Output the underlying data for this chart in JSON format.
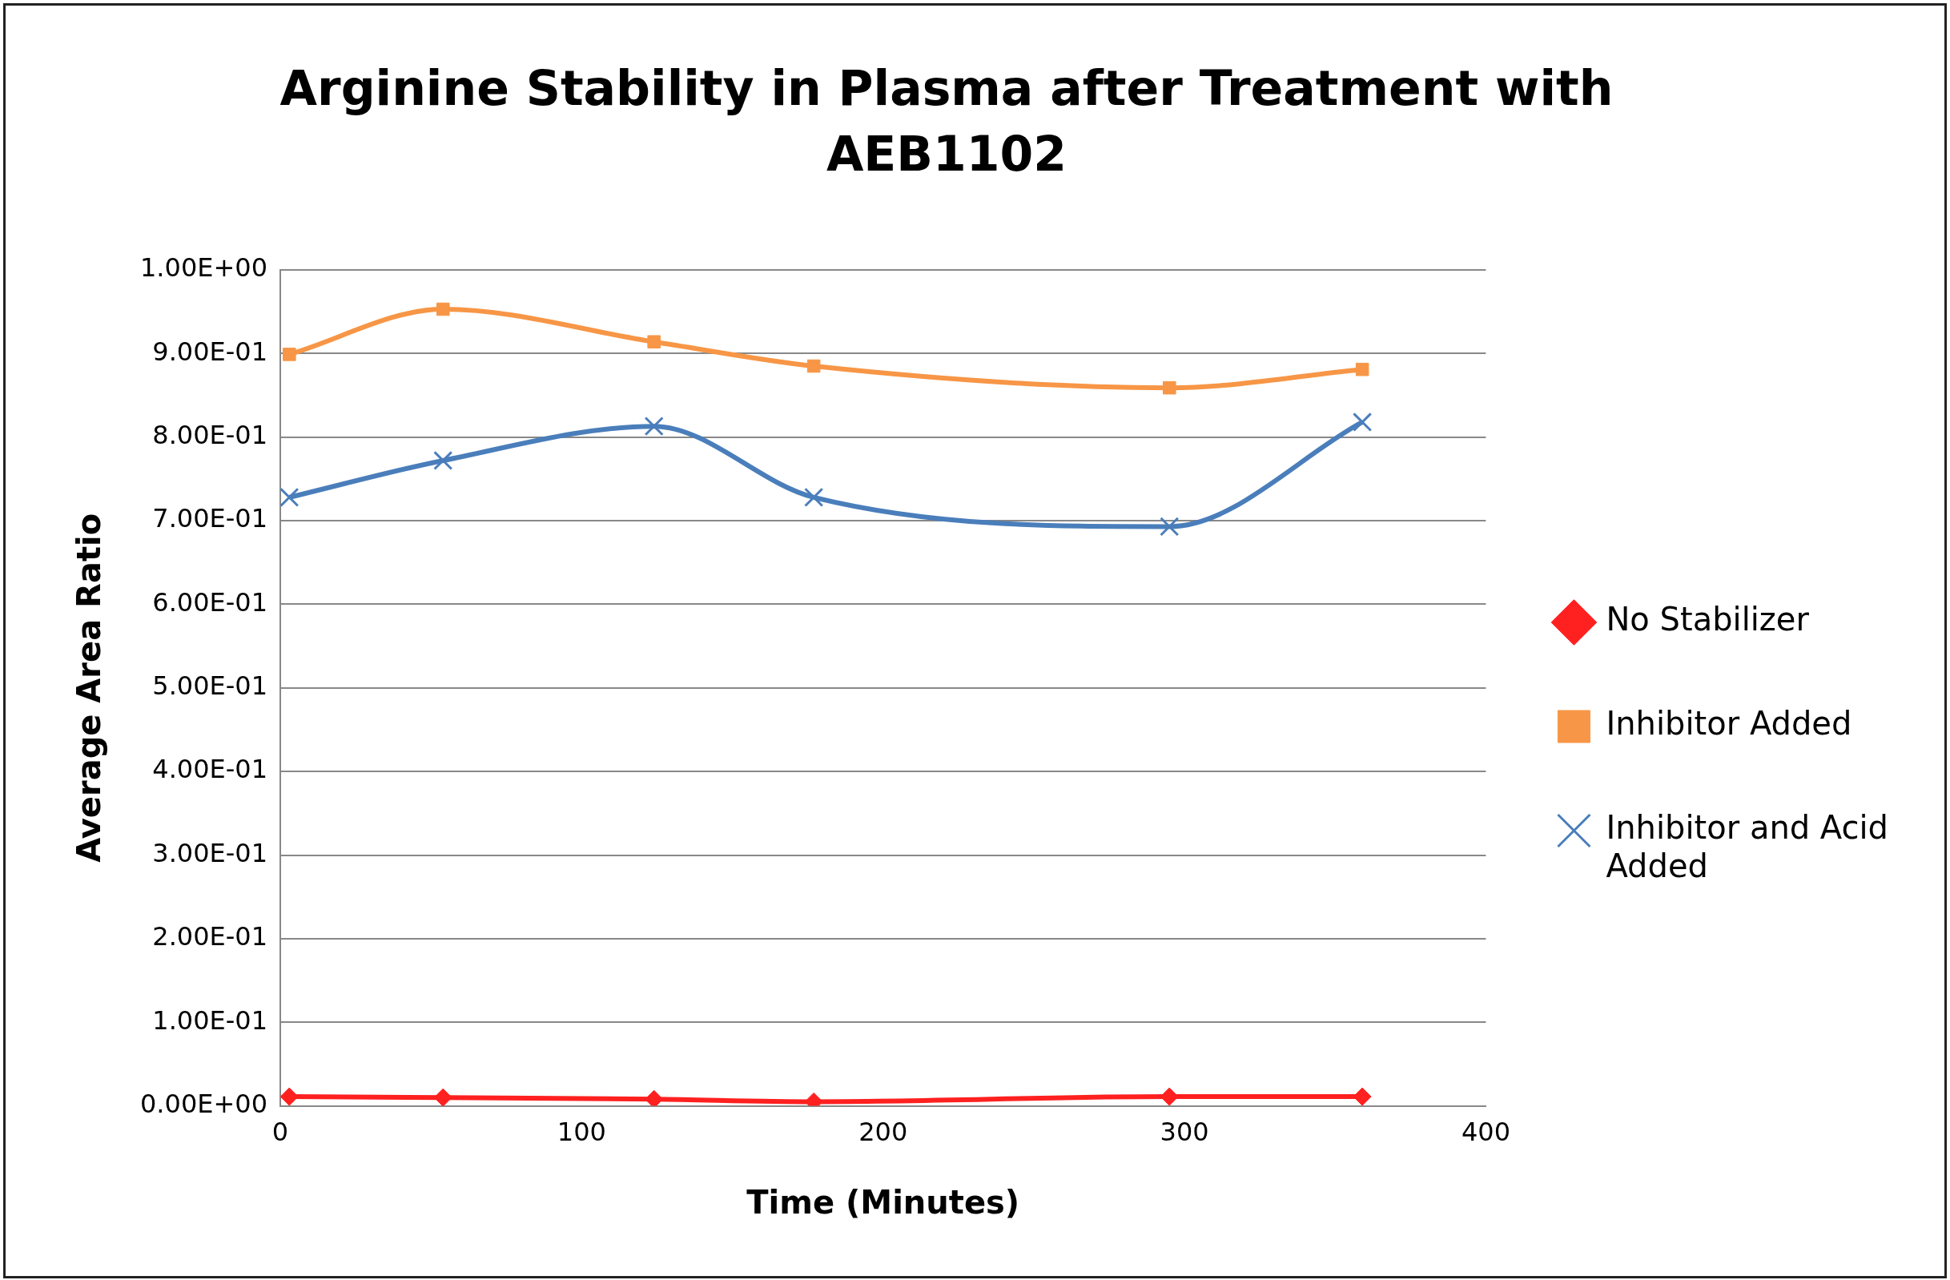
{
  "chart_data": {
    "type": "line",
    "title": "Arginine Stability in Plasma after Treatment with AEB1102",
    "xlabel": "Time (Minutes)",
    "ylabel": "Average Area Ratio",
    "xlim": [
      0,
      400
    ],
    "xticks": [
      0,
      100,
      200,
      300,
      400
    ],
    "ylim": [
      0,
      1
    ],
    "yticks": [
      {
        "value": 0,
        "label": "0.00E+00"
      },
      {
        "value": 0.1,
        "label": "1.00E-01"
      },
      {
        "value": 0.2,
        "label": "2.00E-01"
      },
      {
        "value": 0.3,
        "label": "3.00E-01"
      },
      {
        "value": 0.4,
        "label": "4.00E-01"
      },
      {
        "value": 0.5,
        "label": "5.00E-01"
      },
      {
        "value": 0.6,
        "label": "6.00E-01"
      },
      {
        "value": 0.7,
        "label": "7.00E-01"
      },
      {
        "value": 0.8,
        "label": "8.00E-01"
      },
      {
        "value": 0.9,
        "label": "9.00E-01"
      },
      {
        "value": 1,
        "label": "1.00E+00"
      }
    ],
    "x": [
      3,
      54,
      124,
      177,
      295,
      359
    ],
    "series": [
      {
        "name": "No Stabilizer",
        "color": "#ff2020",
        "marker": "diamond",
        "values": [
          0.011,
          0.01,
          0.008,
          0.005,
          0.011,
          0.011
        ]
      },
      {
        "name": "Inhibitor Added",
        "color": "#f79646",
        "marker": "square",
        "values": [
          0.899,
          0.953,
          0.914,
          0.885,
          0.859,
          0.881
        ]
      },
      {
        "name": "Inhibitor and Acid Added",
        "color": "#4a7ebb",
        "marker": "cross",
        "values": [
          0.728,
          0.772,
          0.813,
          0.728,
          0.693,
          0.818
        ]
      }
    ],
    "grid": "y",
    "legend": "right"
  }
}
